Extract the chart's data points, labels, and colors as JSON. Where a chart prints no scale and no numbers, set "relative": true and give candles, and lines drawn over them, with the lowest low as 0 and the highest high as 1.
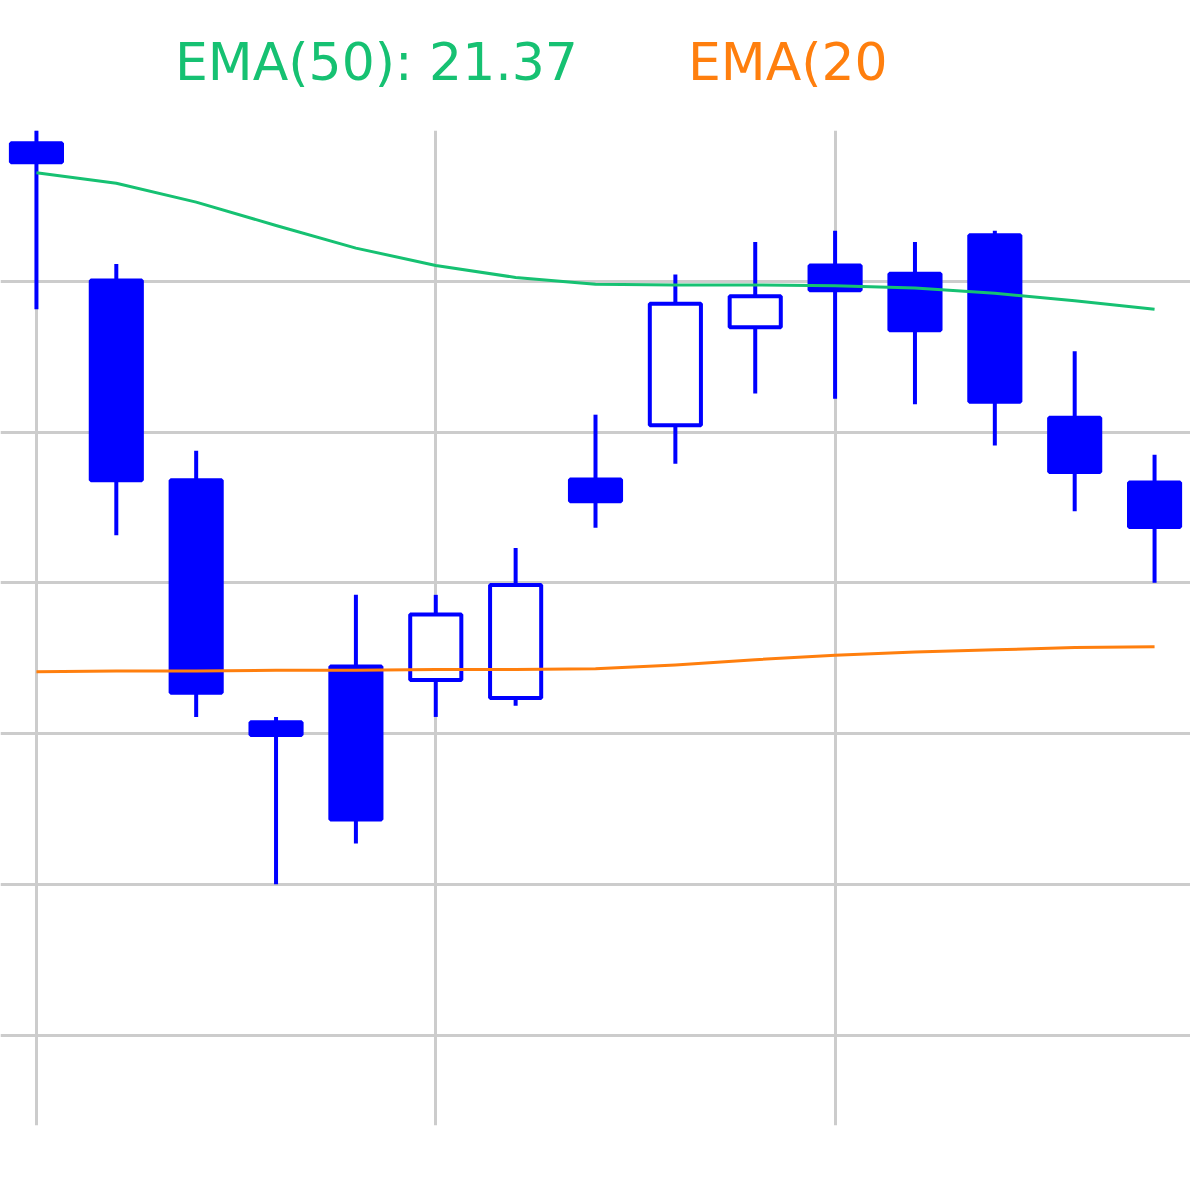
{
  "chart_data": {
    "type": "candlestick",
    "relative": true,
    "grid": true,
    "color": "#0000ff",
    "categories": [
      null,
      null,
      null,
      null,
      null,
      null,
      null,
      null,
      null,
      null,
      null,
      null,
      null,
      null,
      null
    ],
    "ohlc": [
      [
        0.983,
        1.0,
        0.763,
        0.958
      ],
      [
        0.801,
        0.823,
        0.463,
        0.536
      ],
      [
        0.536,
        0.575,
        0.222,
        0.254
      ],
      [
        0.215,
        0.222,
        0.0,
        0.198
      ],
      [
        0.289,
        0.384,
        0.054,
        0.086
      ],
      [
        0.271,
        0.384,
        0.222,
        0.358
      ],
      [
        0.247,
        0.446,
        0.237,
        0.397
      ],
      [
        0.537,
        0.623,
        0.473,
        0.508
      ],
      [
        0.609,
        0.809,
        0.558,
        0.77
      ],
      [
        0.739,
        0.852,
        0.651,
        0.78
      ],
      [
        0.821,
        0.867,
        0.644,
        0.788
      ],
      [
        0.81,
        0.852,
        0.637,
        0.735
      ],
      [
        0.861,
        0.867,
        0.582,
        0.64
      ],
      [
        0.619,
        0.707,
        0.495,
        0.547
      ],
      [
        0.533,
        0.57,
        0.4,
        0.474
      ]
    ],
    "series": [
      {
        "type": "line",
        "name": "EMA(50): 21.37",
        "color": "#16c172",
        "values": [
          0.944,
          0.93,
          0.905,
          0.874,
          0.844,
          0.821,
          0.805,
          0.796,
          0.795,
          0.795,
          0.794,
          0.791,
          0.784,
          0.774,
          0.763
        ]
      },
      {
        "type": "line",
        "name": "EMA(20",
        "color": "#ff7f0e",
        "values": [
          0.282,
          0.283,
          0.283,
          0.284,
          0.284,
          0.285,
          0.285,
          0.286,
          0.291,
          0.298,
          0.304,
          0.308,
          0.311,
          0.314,
          0.315
        ]
      }
    ]
  }
}
